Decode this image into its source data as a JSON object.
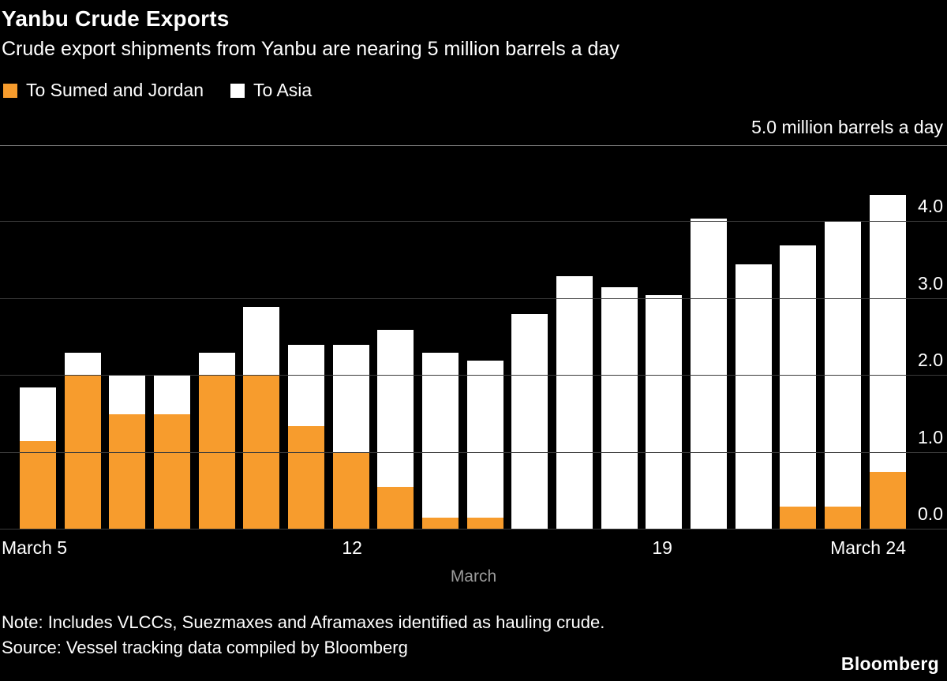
{
  "header": {
    "title": "Yanbu Crude Exports",
    "subtitle": "Crude export shipments from Yanbu are nearing 5 million barrels a day"
  },
  "legend": [
    {
      "label": "To Sumed and Jordan",
      "color": "#f79c2d"
    },
    {
      "label": "To Asia",
      "color": "#ffffff"
    }
  ],
  "chart_data": {
    "type": "bar",
    "stacked": true,
    "unit_label": "5.0 million barrels a day",
    "x_axis_title": "March",
    "y_max": 5,
    "y_ticks": [
      0,
      1,
      2,
      3,
      4
    ],
    "x_ticks": [
      {
        "index": 0,
        "label": "March 5"
      },
      {
        "index": 7,
        "label": "12"
      },
      {
        "index": 14,
        "label": "19"
      },
      {
        "index": 19,
        "label": "March 24"
      }
    ],
    "categories": [
      "March 5",
      "March 6",
      "March 7",
      "March 8",
      "March 9",
      "March 10",
      "March 11",
      "March 12",
      "March 13",
      "March 14",
      "March 15",
      "March 16",
      "March 17",
      "March 18",
      "March 19",
      "March 20",
      "March 21",
      "March 22",
      "March 23",
      "March 24"
    ],
    "series": [
      {
        "name": "To Sumed and Jordan",
        "color": "#f79c2d",
        "values": [
          1.15,
          2.0,
          1.5,
          1.5,
          2.0,
          2.0,
          1.35,
          1.0,
          0.55,
          0.15,
          0.15,
          0,
          0,
          0,
          0,
          0,
          0,
          0.3,
          0.3,
          0.75
        ]
      },
      {
        "name": "To Asia",
        "color": "#ffffff",
        "values": [
          0.7,
          0.3,
          0.5,
          0.5,
          0.3,
          0.9,
          1.05,
          1.4,
          2.05,
          2.15,
          2.05,
          2.8,
          3.3,
          3.15,
          3.05,
          4.05,
          3.45,
          3.4,
          3.7,
          3.6
        ]
      }
    ]
  },
  "footer": {
    "note": "Note: Includes VLCCs, Suezmaxes and Aframaxes identified as hauling crude.",
    "source": "Source: Vessel tracking data compiled by Bloomberg",
    "brand": "Bloomberg"
  }
}
